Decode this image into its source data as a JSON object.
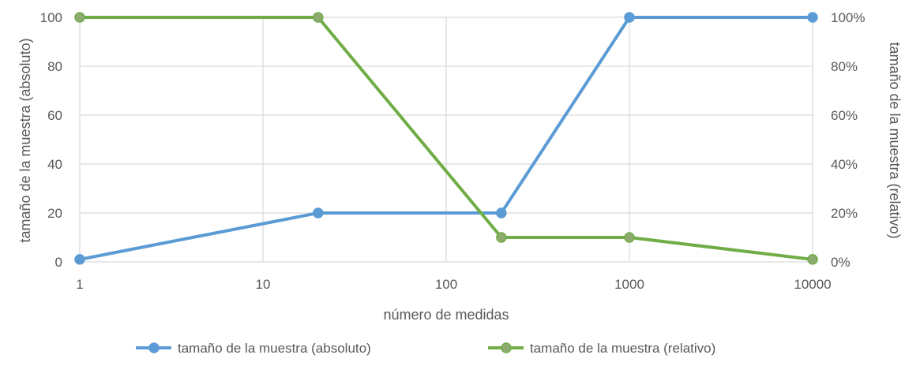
{
  "chart_data": {
    "type": "line",
    "x_scale": "log",
    "x": [
      1,
      20,
      200,
      1000,
      10000
    ],
    "xlabel": "número de medidas",
    "ylabel_left": "tamaño de la muestra (absoluto)",
    "ylabel_right": "tamaño de la muestra (relativo)",
    "xlim": [
      1,
      10000
    ],
    "ylim_left": [
      0,
      100
    ],
    "ylim_right": [
      0,
      1
    ],
    "x_ticks": [
      "1",
      "10",
      "100",
      "1000",
      "10000"
    ],
    "y_ticks_left": [
      "0",
      "20",
      "40",
      "60",
      "80",
      "100"
    ],
    "y_ticks_right": [
      "0%",
      "20%",
      "40%",
      "60%",
      "80%",
      "100%"
    ],
    "grid": true,
    "legend_position": "bottom",
    "series": [
      {
        "name": "tamaño de la muestra (absoluto)",
        "axis": "left",
        "color": "#5B9BD5",
        "values": [
          1,
          20,
          20,
          100,
          100
        ]
      },
      {
        "name": "tamaño de la muestra (relativo)",
        "axis": "right",
        "color": "#70AD47",
        "values": [
          1.0,
          1.0,
          0.1,
          0.1,
          0.01
        ]
      }
    ]
  }
}
